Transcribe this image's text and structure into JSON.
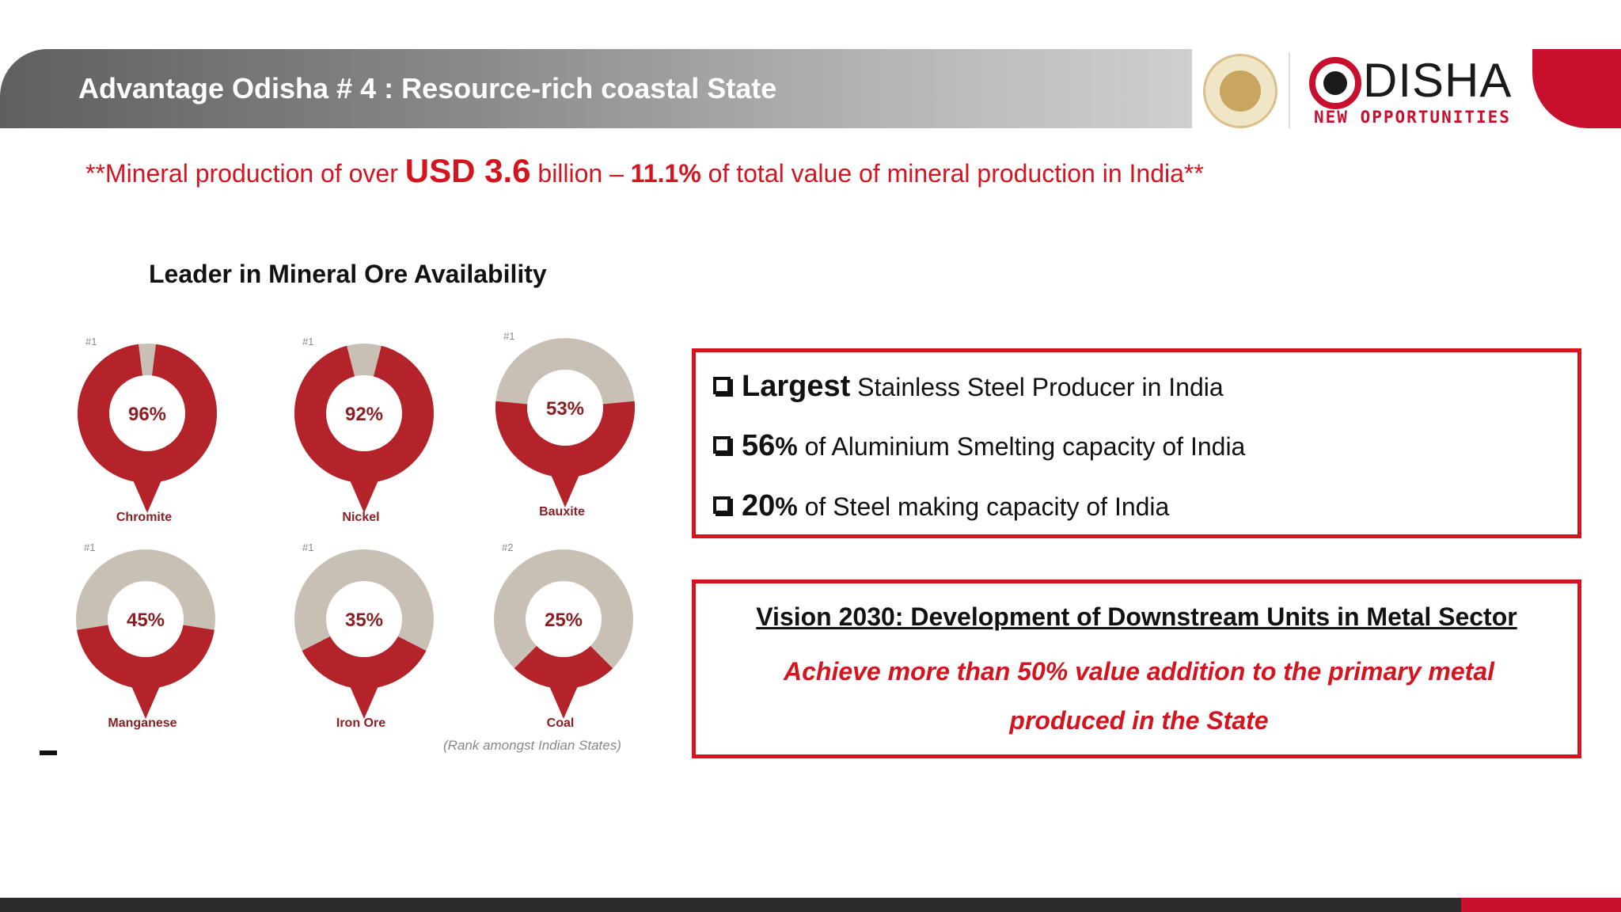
{
  "header": {
    "title": "Advantage Odisha # 4 : Resource-rich coastal State"
  },
  "brand": {
    "word": "DISHA",
    "tagline": "NEW OPPORTUNITIES"
  },
  "headline": {
    "prefix": "**Mineral production of over ",
    "amount": "USD 3.6",
    "middle": " billion – ",
    "share": "11.1%",
    "suffix": " of  total value of mineral production in India**"
  },
  "section_title": "Leader in Mineral Ore Availability",
  "chart_data": {
    "type": "pie",
    "note": "(Rank amongst Indian States)",
    "items": [
      {
        "name": "Chromite",
        "rank": "#1",
        "value": 96,
        "label": "96%"
      },
      {
        "name": "Nickel",
        "rank": "#1",
        "value": 92,
        "label": "92%"
      },
      {
        "name": "Bauxite",
        "rank": "#1",
        "value": 53,
        "label": "53%"
      },
      {
        "name": "Manganese",
        "rank": "#1",
        "value": 45,
        "label": "45%"
      },
      {
        "name": "Iron Ore",
        "rank": "#1",
        "value": 35,
        "label": "35%"
      },
      {
        "name": "Coal",
        "rank": "#2",
        "value": 25,
        "label": "25%"
      }
    ],
    "colors": {
      "filled": "#b5232a",
      "remainder": "#c8c0b4"
    }
  },
  "facts": [
    {
      "lead": "Largest",
      "text": " Stainless Steel Producer in India"
    },
    {
      "lead": "56",
      "unit": "%",
      "text": " of Aluminium Smelting capacity of India"
    },
    {
      "lead": "20",
      "unit": "%",
      "text": " of Steel making capacity of India"
    }
  ],
  "vision": {
    "title": "Vision 2030: Development of Downstream Units in Metal Sector",
    "line1": "Achieve more than 50% value addition to the primary   metal",
    "line2": "produced in the State"
  }
}
